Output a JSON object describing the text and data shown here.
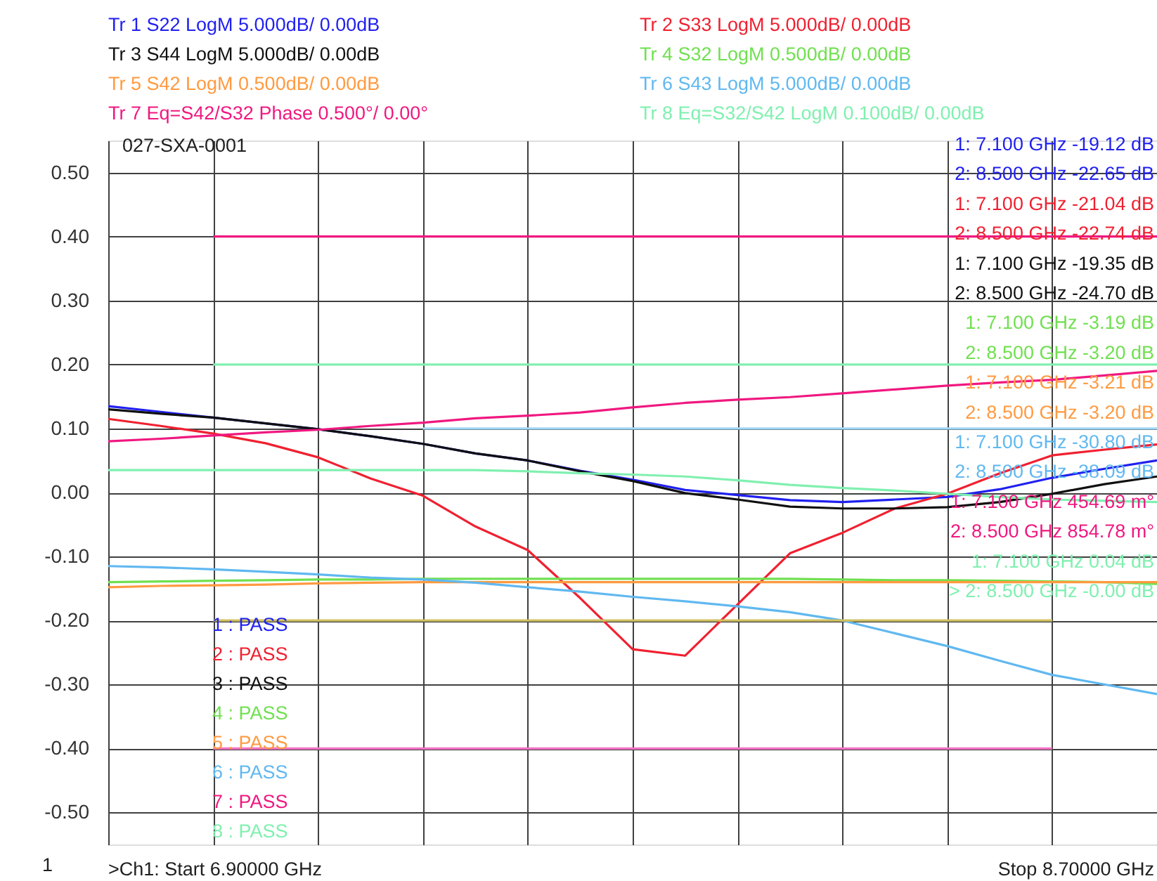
{
  "chart_data": {
    "type": "line",
    "categories": [
      null,
      null,
      null,
      null,
      null,
      null,
      null,
      null,
      null,
      null,
      null,
      null,
      null,
      null,
      null,
      null,
      null,
      null,
      null,
      null,
      null
    ],
    "ylim": [
      -0.55,
      0.55
    ],
    "yticks": [
      {
        "value": 0.5,
        "label": "0.50"
      },
      {
        "value": 0.4,
        "label": "0.40"
      },
      {
        "value": 0.3,
        "label": "0.30"
      },
      {
        "value": 0.2,
        "label": "0.20"
      },
      {
        "value": 0.1,
        "label": "0.10"
      },
      {
        "value": 0,
        "label": "0.00"
      },
      {
        "value": -0.1,
        "label": "-0.10"
      },
      {
        "value": -0.2,
        "label": "-0.20"
      },
      {
        "value": -0.3,
        "label": "-0.30"
      },
      {
        "value": -0.4,
        "label": "-0.40"
      },
      {
        "value": -0.5,
        "label": "-0.50"
      }
    ],
    "grid": true,
    "tick_labels": "y",
    "line_style": "solid",
    "marker": "none",
    "series": [
      {
        "name": "Tr 1  S22 LogM 5.000dB/  0.00dB",
        "color": "#2020f0",
        "values": [
          0.135,
          0.126,
          0.117,
          0.108,
          0.099,
          0.088,
          0.076,
          0.061,
          0.05,
          0.034,
          0.02,
          0.004,
          -0.004,
          -0.012,
          -0.015,
          -0.011,
          -0.007,
          0.005,
          0.023,
          0.037,
          0.05
        ]
      },
      {
        "name": "Tr 2  S33 LogM 5.000dB/  0.00dB",
        "color": "#f02030",
        "values": [
          0.115,
          0.104,
          0.092,
          0.077,
          0.055,
          0.022,
          -0.005,
          -0.053,
          -0.09,
          -0.165,
          -0.245,
          -0.255,
          -0.175,
          -0.095,
          -0.063,
          -0.025,
          -0.002,
          0.03,
          0.058,
          0.067,
          0.075
        ]
      },
      {
        "name": "Tr 3  S44 LogM 5.000dB/  0.00dB",
        "color": "#101010",
        "values": [
          0.13,
          0.123,
          0.117,
          0.108,
          0.099,
          0.088,
          0.076,
          0.061,
          0.05,
          0.033,
          0.018,
          -0.001,
          -0.011,
          -0.022,
          -0.025,
          -0.025,
          -0.023,
          -0.015,
          -0.002,
          0.013,
          0.025
        ]
      },
      {
        "name": "Tr 4  S32 LogM 0.500dB/  0.00dB",
        "color": "#70e050",
        "values": [
          -0.14,
          -0.139,
          -0.138,
          -0.137,
          -0.136,
          -0.136,
          -0.135,
          -0.135,
          -0.135,
          -0.135,
          -0.135,
          -0.135,
          -0.135,
          -0.135,
          -0.136,
          -0.137,
          -0.137,
          -0.138,
          -0.139,
          -0.14,
          -0.143
        ]
      },
      {
        "name": "Tr 5  S42 LogM 0.500dB/  0.00dB",
        "color": "#ff9a40",
        "values": [
          -0.148,
          -0.146,
          -0.145,
          -0.144,
          -0.142,
          -0.141,
          -0.14,
          -0.14,
          -0.14,
          -0.14,
          -0.14,
          -0.14,
          -0.14,
          -0.14,
          -0.14,
          -0.14,
          -0.14,
          -0.14,
          -0.14,
          -0.14,
          -0.14
        ]
      },
      {
        "name": "Tr 6  S43 LogM 5.000dB/  0.00dB",
        "color": "#60b8f0",
        "values": [
          -0.115,
          -0.117,
          -0.12,
          -0.124,
          -0.128,
          -0.133,
          -0.136,
          -0.141,
          -0.148,
          -0.155,
          -0.163,
          -0.17,
          -0.178,
          -0.187,
          -0.2,
          -0.22,
          -0.24,
          -0.263,
          -0.285,
          -0.3,
          -0.315
        ]
      },
      {
        "name": "Tr 7  Eq=S42/S32 Phase 0.500°/  0.00°",
        "color": "#f01880",
        "values": [
          0.08,
          0.084,
          0.089,
          0.094,
          0.098,
          0.104,
          0.109,
          0.116,
          0.12,
          0.125,
          0.133,
          0.14,
          0.145,
          0.149,
          0.155,
          0.161,
          0.167,
          0.172,
          0.176,
          0.183,
          0.19
        ]
      },
      {
        "name": "Tr 8  Eq=S32/S42 LogM 0.100dB/  0.00dB",
        "color": "#80f0b0",
        "values": [
          0.035,
          0.035,
          0.035,
          0.035,
          0.035,
          0.035,
          0.035,
          0.035,
          0.033,
          0.03,
          0.028,
          0.025,
          0.019,
          0.012,
          0.007,
          0.003,
          -0.002,
          -0.007,
          -0.011,
          -0.013,
          -0.015
        ]
      },
      {
        "color": "#f01880",
        "values": [
          null,
          null,
          0.4,
          0.4,
          0.4,
          0.4,
          0.4,
          0.4,
          0.4,
          0.4,
          0.4,
          0.4,
          0.4,
          0.4,
          0.4,
          0.4,
          0.4,
          0.4,
          0.4,
          0.4,
          0.4
        ]
      },
      {
        "color": "#80f0b0",
        "values": [
          null,
          null,
          0.2,
          0.2,
          0.2,
          0.2,
          0.2,
          0.2,
          0.2,
          0.2,
          0.2,
          0.2,
          0.2,
          0.2,
          0.2,
          0.2,
          0.2,
          0.2,
          0.2,
          0.2,
          0.2
        ]
      },
      {
        "color": "#a0d8f8",
        "values": [
          null,
          null,
          null,
          null,
          null,
          null,
          0.1,
          0.1,
          0.1,
          0.1,
          0.1,
          0.1,
          0.1,
          0.1,
          0.1,
          0.1,
          0.1,
          0.1,
          0.1,
          0.1,
          0.1
        ]
      },
      {
        "color": "#d0c060",
        "values": [
          null,
          null,
          -0.2,
          -0.2,
          -0.2,
          -0.2,
          -0.2,
          -0.2,
          -0.2,
          -0.2,
          -0.2,
          -0.2,
          -0.2,
          -0.2,
          -0.2,
          -0.2,
          -0.2,
          -0.2,
          -0.2,
          null,
          null
        ]
      },
      {
        "color": "#f070c0",
        "values": [
          null,
          null,
          -0.4,
          -0.4,
          -0.4,
          -0.4,
          -0.4,
          -0.4,
          -0.4,
          -0.4,
          -0.4,
          -0.4,
          -0.4,
          -0.4,
          -0.4,
          -0.4,
          -0.4,
          -0.4,
          -0.4,
          null,
          null
        ]
      }
    ],
    "annotations": [
      "027-SXA-0001",
      "1:   7.100 GHz   -19.12 dB",
      "2:   8.500 GHz   -22.65 dB",
      "1:   7.100 GHz   -21.04 dB",
      "2:   8.500 GHz   -22.74 dB",
      "1:   7.100 GHz   -19.35 dB",
      "2:   8.500 GHz   -24.70 dB",
      "1:   7.100 GHz   -3.19 dB",
      "2:   8.500 GHz   -3.20 dB",
      "1:   7.100 GHz   -3.21 dB",
      "2:   8.500 GHz   -3.20 dB",
      "1:   7.100 GHz   -30.80 dB",
      "2:   8.500 GHz   -38.09 dB",
      "1:   7.100 GHz   454.69 m°",
      "2:   8.500 GHz   854.78 m°",
      "1:   7.100 GHz   0.04 dB",
      "> 2:   8.500 GHz   -0.00 dB",
      "1 : PASS",
      "2 : PASS",
      "3 : PASS",
      "4 : PASS",
      "5 : PASS",
      "6 : PASS",
      "7 : PASS",
      "8 : PASS",
      ">Ch1:  Start  6.90000 GHz",
      "Stop  8.70000 GHz",
      "1"
    ]
  }
}
